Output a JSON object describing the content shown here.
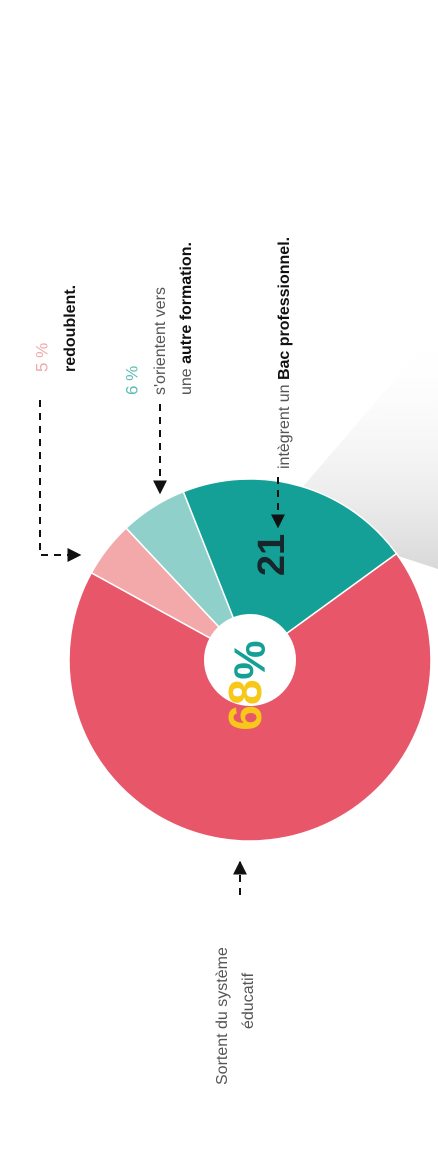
{
  "chart_data": {
    "type": "pie",
    "center_label": "%",
    "values": [
      68,
      5,
      6,
      21
    ],
    "value_labels": [
      "68",
      "5 %",
      "6 %",
      "21"
    ],
    "colors": [
      "#e8566a",
      "#f3a9aa",
      "#8fd0cb",
      "#14a096"
    ],
    "value_label_colors": [
      "#f7c81a",
      "#f3a9aa",
      "#5fbdb6",
      "#16262a"
    ],
    "categories": [
      [
        [
          {
            "text": "Sortent du système"
          }
        ],
        [
          {
            "text": "éducatif"
          }
        ]
      ],
      [
        [
          {
            "text": "redoublent.",
            "bold": true
          }
        ]
      ],
      [
        [
          {
            "text": "s'orientent vers"
          }
        ],
        [
          {
            "text": "une "
          },
          {
            "text": "autre formation.",
            "bold": true
          }
        ]
      ],
      [
        [
          {
            "text": "intègrent un "
          },
          {
            "text": "Bac professionnel.",
            "bold": true
          }
        ]
      ]
    ]
  }
}
